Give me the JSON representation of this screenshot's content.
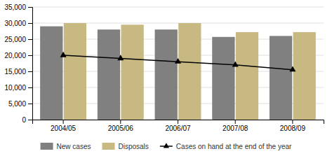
{
  "chart_data": {
    "type": "bar",
    "categories": [
      "2004/05",
      "2005/06",
      "2006/07",
      "2007/08",
      "2008/09"
    ],
    "series": [
      {
        "name": "New cases",
        "type": "bar",
        "color": "#808080",
        "values": [
          29000,
          28000,
          28000,
          25700,
          26000
        ]
      },
      {
        "name": "Disposals",
        "type": "bar",
        "color": "#c8b882",
        "values": [
          30000,
          29500,
          30000,
          27200,
          27200
        ]
      },
      {
        "name": "Cases on hand at the end of the year",
        "type": "line",
        "color": "#000000",
        "marker": "triangle",
        "values": [
          20000,
          19000,
          18000,
          17000,
          15500
        ]
      }
    ],
    "ylim": [
      0,
      35000
    ],
    "yticks": [
      0,
      {
        "value": 5000,
        "label": "5,000"
      },
      {
        "value": 10000,
        "label": "10,000"
      },
      {
        "value": 15000,
        "label": "15,000"
      },
      {
        "value": 20000,
        "label": "20,000"
      },
      {
        "value": 25000,
        "label": "25,000"
      },
      {
        "value": 30000,
        "label": "30,000"
      },
      {
        "value": 35000,
        "label": "35,000"
      }
    ],
    "grid": true,
    "legend": "bottom"
  }
}
